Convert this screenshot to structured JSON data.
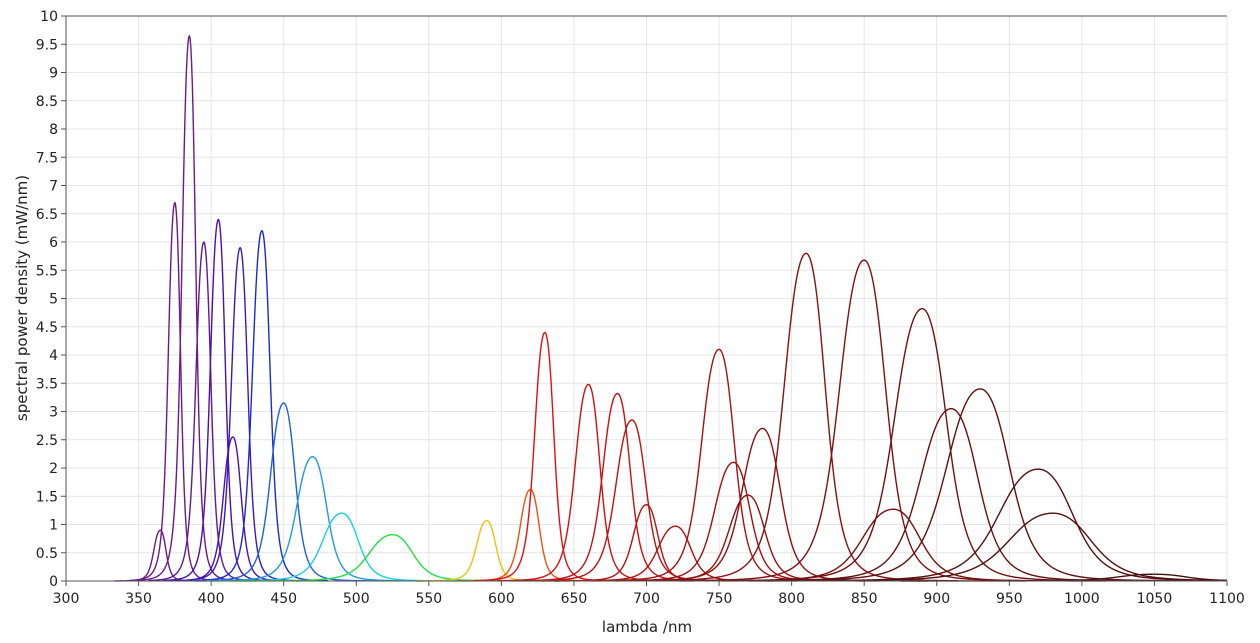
{
  "chart_data": {
    "type": "line",
    "xlabel": "lambda /nm",
    "ylabel": "spectral power density (mW/nm)",
    "xlim": [
      300,
      1100
    ],
    "ylim": [
      0,
      10
    ],
    "x_ticks": [
      300,
      350,
      400,
      450,
      500,
      550,
      600,
      650,
      700,
      750,
      800,
      850,
      900,
      950,
      1000,
      1050,
      1100
    ],
    "y_ticks": [
      0,
      0.5,
      1,
      1.5,
      2,
      2.5,
      3,
      3.5,
      4,
      4.5,
      5,
      5.5,
      6,
      6.5,
      7,
      7.5,
      8,
      8.5,
      9,
      9.5,
      10
    ],
    "grid": true,
    "legend": "none",
    "series": [
      {
        "peak_nm": 365,
        "peak": 0.9,
        "fwhm": 9,
        "color": "#6a1a8a"
      },
      {
        "peak_nm": 375,
        "peak": 6.7,
        "fwhm": 9,
        "color": "#6a1a8a"
      },
      {
        "peak_nm": 385,
        "peak": 9.65,
        "fwhm": 10,
        "color": "#6a1a8a"
      },
      {
        "peak_nm": 395,
        "peak": 6.0,
        "fwhm": 11,
        "color": "#5a1a9a"
      },
      {
        "peak_nm": 405,
        "peak": 6.4,
        "fwhm": 11,
        "color": "#4a10a8"
      },
      {
        "peak_nm": 415,
        "peak": 2.55,
        "fwhm": 13,
        "color": "#4a10b0"
      },
      {
        "peak_nm": 420,
        "peak": 5.9,
        "fwhm": 12,
        "color": "#3a18c0"
      },
      {
        "peak_nm": 435,
        "peak": 6.2,
        "fwhm": 13,
        "color": "#1a2ad6"
      },
      {
        "peak_nm": 450,
        "peak": 3.15,
        "fwhm": 18,
        "color": "#1f5fe0"
      },
      {
        "peak_nm": 470,
        "peak": 2.2,
        "fwhm": 22,
        "color": "#1e9be0"
      },
      {
        "peak_nm": 490,
        "peak": 1.2,
        "fwhm": 26,
        "color": "#18d0e0"
      },
      {
        "peak_nm": 525,
        "peak": 0.82,
        "fwhm": 32,
        "color": "#22e040"
      },
      {
        "peak_nm": 590,
        "peak": 1.07,
        "fwhm": 14,
        "color": "#f0c010"
      },
      {
        "peak_nm": 620,
        "peak": 1.62,
        "fwhm": 14,
        "color": "#f05010"
      },
      {
        "peak_nm": 630,
        "peak": 4.4,
        "fwhm": 14,
        "color": "#e01010"
      },
      {
        "peak_nm": 660,
        "peak": 3.48,
        "fwhm": 18,
        "color": "#d01010"
      },
      {
        "peak_nm": 680,
        "peak": 3.32,
        "fwhm": 20,
        "color": "#c81010"
      },
      {
        "peak_nm": 690,
        "peak": 2.85,
        "fwhm": 22,
        "color": "#c01010"
      },
      {
        "peak_nm": 700,
        "peak": 1.35,
        "fwhm": 18,
        "color": "#b81010"
      },
      {
        "peak_nm": 720,
        "peak": 0.97,
        "fwhm": 24,
        "color": "#b01010"
      },
      {
        "peak_nm": 750,
        "peak": 4.1,
        "fwhm": 24,
        "color": "#a81010"
      },
      {
        "peak_nm": 760,
        "peak": 2.1,
        "fwhm": 26,
        "color": "#a01010"
      },
      {
        "peak_nm": 770,
        "peak": 1.52,
        "fwhm": 26,
        "color": "#981010"
      },
      {
        "peak_nm": 780,
        "peak": 2.7,
        "fwhm": 28,
        "color": "#901010"
      },
      {
        "peak_nm": 810,
        "peak": 5.8,
        "fwhm": 30,
        "color": "#881010"
      },
      {
        "peak_nm": 850,
        "peak": 5.68,
        "fwhm": 34,
        "color": "#801010"
      },
      {
        "peak_nm": 870,
        "peak": 1.27,
        "fwhm": 42,
        "color": "#781010"
      },
      {
        "peak_nm": 890,
        "peak": 4.82,
        "fwhm": 38,
        "color": "#701010"
      },
      {
        "peak_nm": 910,
        "peak": 3.05,
        "fwhm": 42,
        "color": "#681010"
      },
      {
        "peak_nm": 930,
        "peak": 3.4,
        "fwhm": 46,
        "color": "#601010"
      },
      {
        "peak_nm": 970,
        "peak": 1.98,
        "fwhm": 54,
        "color": "#581010"
      },
      {
        "peak_nm": 980,
        "peak": 1.2,
        "fwhm": 60,
        "color": "#501010"
      },
      {
        "peak_nm": 1050,
        "peak": 0.12,
        "fwhm": 50,
        "color": "#481010"
      }
    ]
  }
}
